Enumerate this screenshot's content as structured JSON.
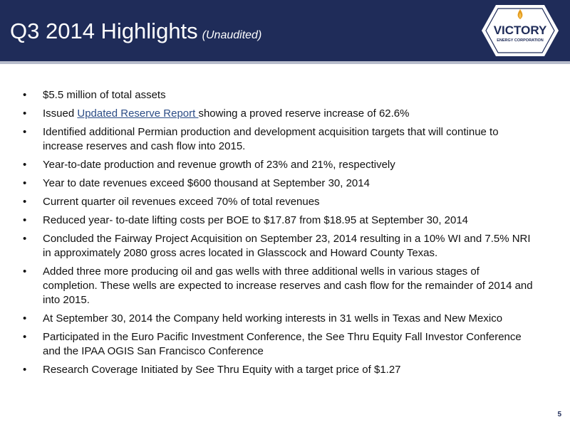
{
  "header": {
    "title": "Q3 2014 Highlights",
    "subtitle": "(Unaudited)",
    "bg_color": "#1f2c59"
  },
  "logo": {
    "name": "VICTORY",
    "tagline": "ENERGY CORPORATION",
    "icon": "flame-icon"
  },
  "bullets": [
    {
      "text": "$5.5 million of total assets"
    },
    {
      "pre": "Issued ",
      "link": "Updated Reserve Report ",
      "post": "showing a proved reserve increase of 62.6%"
    },
    {
      "text": "Identified additional Permian production and development acquisition targets that will continue to increase reserves and cash flow into 2015."
    },
    {
      "text": "Year-to-date production and revenue growth of 23% and 21%, respectively"
    },
    {
      "text": "Year to date revenues exceed $600 thousand at September 30, 2014"
    },
    {
      "text": "Current quarter oil revenues exceed 70% of total revenues"
    },
    {
      "text": "Reduced year- to-date lifting costs per BOE to $17.87 from $18.95 at September 30, 2014"
    },
    {
      "text": "Concluded the Fairway Project Acquisition on September 23, 2014 resulting in a 10% WI and 7.5% NRI in approximately 2080 gross acres located in Glasscock and Howard County Texas."
    },
    {
      "text": "Added three more producing oil and gas wells with three additional wells in various stages of completion.  These wells are expected to increase reserves and cash flow for the remainder of 2014 and into 2015."
    },
    {
      "text": "At September 30, 2014 the Company held working interests in 31 wells in Texas and New Mexico"
    },
    {
      "text": "Participated in the Euro Pacific Investment Conference, the See Thru Equity Fall Investor Conference and the IPAA OGIS San Francisco Conference"
    },
    {
      "text": "Research Coverage Initiated by See Thru Equity with a target price of $1.27"
    }
  ],
  "bullet_char": "•",
  "page_number": "5"
}
